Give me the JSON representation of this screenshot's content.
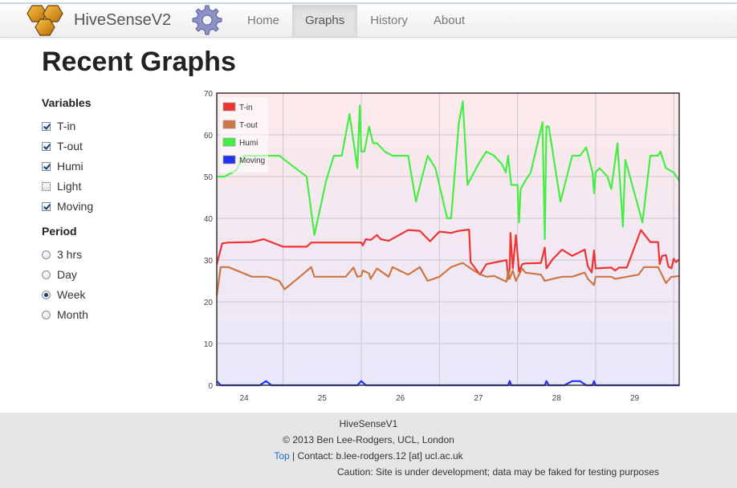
{
  "navbar": {
    "brand": "HiveSenseV2",
    "items": [
      {
        "label": "Home",
        "active": false
      },
      {
        "label": "Graphs",
        "active": true
      },
      {
        "label": "History",
        "active": false
      },
      {
        "label": "About",
        "active": false
      }
    ],
    "logo_icon": "honeycomb-logo-icon",
    "gear_icon": "gear-icon"
  },
  "page_title": "Recent Graphs",
  "sidebar": {
    "variables_header": "Variables",
    "variables": [
      {
        "label": "T-in",
        "checked": true
      },
      {
        "label": "T-out",
        "checked": true
      },
      {
        "label": "Humi",
        "checked": true
      },
      {
        "label": "Light",
        "checked": false
      },
      {
        "label": "Moving",
        "checked": true
      }
    ],
    "period_header": "Period",
    "periods": [
      {
        "label": "3 hrs",
        "selected": false
      },
      {
        "label": "Day",
        "selected": false
      },
      {
        "label": "Week",
        "selected": true
      },
      {
        "label": "Month",
        "selected": false
      }
    ]
  },
  "chart_data": {
    "type": "line",
    "ylim": [
      0,
      70
    ],
    "xlim": [
      23.65,
      29.57
    ],
    "x_ticks": [
      "24",
      "25",
      "26",
      "27",
      "28",
      "29"
    ],
    "y_ticks": [
      "0",
      "10",
      "20",
      "30",
      "40",
      "50",
      "60",
      "70"
    ],
    "grid": true,
    "legend_position": "top-left",
    "series": [
      {
        "name": "T-in",
        "color": "#ee3333",
        "points": [
          [
            23.65,
            29
          ],
          [
            23.72,
            34
          ],
          [
            23.8,
            34.2
          ],
          [
            24.1,
            34.3
          ],
          [
            24.25,
            35
          ],
          [
            24.5,
            33.2
          ],
          [
            24.8,
            33.2
          ],
          [
            24.86,
            34.2
          ],
          [
            25.5,
            34.2
          ],
          [
            25.52,
            33.5
          ],
          [
            25.56,
            35
          ],
          [
            25.62,
            34.8
          ],
          [
            25.7,
            36
          ],
          [
            25.75,
            35
          ],
          [
            25.85,
            34.6
          ],
          [
            26.1,
            37.2
          ],
          [
            26.25,
            37
          ],
          [
            26.38,
            34.5
          ],
          [
            26.5,
            36.8
          ],
          [
            26.65,
            36.5
          ],
          [
            26.75,
            37
          ],
          [
            26.88,
            37.3
          ],
          [
            26.9,
            29.5
          ],
          [
            27.02,
            26.5
          ],
          [
            27.1,
            29
          ],
          [
            27.36,
            30
          ],
          [
            27.38,
            25.5
          ],
          [
            27.4,
            28
          ],
          [
            27.41,
            36.5
          ],
          [
            27.44,
            28
          ],
          [
            27.48,
            36
          ],
          [
            27.52,
            27.2
          ],
          [
            27.56,
            29
          ],
          [
            27.6,
            29.2
          ],
          [
            27.8,
            29.3
          ],
          [
            27.85,
            33
          ],
          [
            27.87,
            28
          ],
          [
            27.95,
            30.2
          ],
          [
            28.07,
            32.5
          ],
          [
            28.2,
            31
          ],
          [
            28.36,
            32.5
          ],
          [
            28.4,
            28.5
          ],
          [
            28.45,
            27
          ],
          [
            28.48,
            32.3
          ],
          [
            28.5,
            28
          ],
          [
            28.7,
            28.2
          ],
          [
            28.75,
            27.5
          ],
          [
            28.8,
            28.2
          ],
          [
            28.9,
            28.2
          ],
          [
            29.08,
            37.2
          ],
          [
            29.2,
            34.3
          ],
          [
            29.3,
            34.3
          ],
          [
            29.32,
            29
          ],
          [
            29.35,
            31
          ],
          [
            29.4,
            31.2
          ],
          [
            29.43,
            28.5
          ],
          [
            29.47,
            28
          ],
          [
            29.5,
            30.3
          ],
          [
            29.53,
            29.5
          ],
          [
            29.57,
            30.2
          ]
        ]
      },
      {
        "name": "T-out",
        "color": "#cc7744",
        "points": [
          [
            23.65,
            21.5
          ],
          [
            23.7,
            28.3
          ],
          [
            23.8,
            28.3
          ],
          [
            24.1,
            26
          ],
          [
            24.3,
            26
          ],
          [
            24.45,
            25
          ],
          [
            24.52,
            23
          ],
          [
            24.7,
            25.8
          ],
          [
            24.86,
            28.3
          ],
          [
            24.9,
            26
          ],
          [
            25.1,
            26
          ],
          [
            25.3,
            26
          ],
          [
            25.4,
            28.2
          ],
          [
            25.45,
            26
          ],
          [
            25.5,
            26.2
          ],
          [
            25.52,
            27.5
          ],
          [
            25.6,
            26.8
          ],
          [
            25.62,
            25.5
          ],
          [
            25.7,
            28
          ],
          [
            25.85,
            26
          ],
          [
            25.9,
            28.3
          ],
          [
            26.1,
            26.5
          ],
          [
            26.25,
            28.3
          ],
          [
            26.35,
            25
          ],
          [
            26.5,
            26
          ],
          [
            26.65,
            28.3
          ],
          [
            26.75,
            29
          ],
          [
            26.8,
            29.3
          ],
          [
            26.9,
            28
          ],
          [
            27.0,
            26.8
          ],
          [
            27.1,
            26
          ],
          [
            27.2,
            26.2
          ],
          [
            27.36,
            24.8
          ],
          [
            27.38,
            27.5
          ],
          [
            27.4,
            25.5
          ],
          [
            27.44,
            27.5
          ],
          [
            27.48,
            25
          ],
          [
            27.56,
            28
          ],
          [
            27.6,
            27
          ],
          [
            27.8,
            26.5
          ],
          [
            27.85,
            25
          ],
          [
            27.95,
            25.5
          ],
          [
            28.07,
            26
          ],
          [
            28.2,
            26
          ],
          [
            28.36,
            27
          ],
          [
            28.4,
            25.5
          ],
          [
            28.48,
            24
          ],
          [
            28.5,
            26
          ],
          [
            28.7,
            26
          ],
          [
            28.75,
            25.5
          ],
          [
            28.9,
            26
          ],
          [
            29.05,
            26.5
          ],
          [
            29.12,
            28.3
          ],
          [
            29.3,
            28.3
          ],
          [
            29.4,
            24.5
          ],
          [
            29.47,
            26
          ],
          [
            29.5,
            26
          ],
          [
            29.57,
            26.2
          ]
        ]
      },
      {
        "name": "Humi",
        "color": "#44ee44",
        "points": [
          [
            23.65,
            50
          ],
          [
            23.75,
            50
          ],
          [
            23.9,
            51.5
          ],
          [
            24.0,
            55
          ],
          [
            24.45,
            55
          ],
          [
            24.8,
            50
          ],
          [
            24.9,
            36
          ],
          [
            25.05,
            49
          ],
          [
            25.15,
            55
          ],
          [
            25.25,
            55
          ],
          [
            25.35,
            65
          ],
          [
            25.45,
            52
          ],
          [
            25.48,
            67
          ],
          [
            25.5,
            56
          ],
          [
            25.54,
            56
          ],
          [
            25.6,
            62
          ],
          [
            25.65,
            58
          ],
          [
            25.7,
            58
          ],
          [
            25.8,
            56
          ],
          [
            25.9,
            55
          ],
          [
            26.1,
            55
          ],
          [
            26.2,
            44
          ],
          [
            26.28,
            50
          ],
          [
            26.35,
            55
          ],
          [
            26.45,
            52
          ],
          [
            26.6,
            40
          ],
          [
            26.65,
            40
          ],
          [
            26.75,
            63
          ],
          [
            26.8,
            68
          ],
          [
            26.86,
            48
          ],
          [
            27.0,
            53
          ],
          [
            27.1,
            56
          ],
          [
            27.2,
            55
          ],
          [
            27.3,
            53
          ],
          [
            27.35,
            51
          ],
          [
            27.38,
            55
          ],
          [
            27.42,
            48
          ],
          [
            27.46,
            48
          ],
          [
            27.5,
            48
          ],
          [
            27.52,
            39
          ],
          [
            27.54,
            47
          ],
          [
            27.6,
            49
          ],
          [
            27.67,
            51
          ],
          [
            27.82,
            63
          ],
          [
            27.85,
            35
          ],
          [
            27.87,
            62
          ],
          [
            27.9,
            62
          ],
          [
            28.05,
            44
          ],
          [
            28.2,
            55
          ],
          [
            28.3,
            55
          ],
          [
            28.38,
            57
          ],
          [
            28.46,
            51
          ],
          [
            28.48,
            46
          ],
          [
            28.5,
            51
          ],
          [
            28.55,
            52
          ],
          [
            28.6,
            51
          ],
          [
            28.65,
            50
          ],
          [
            28.7,
            47
          ],
          [
            28.78,
            58
          ],
          [
            28.85,
            38
          ],
          [
            28.88,
            54
          ],
          [
            29.1,
            39
          ],
          [
            29.2,
            55
          ],
          [
            29.3,
            55
          ],
          [
            29.33,
            56
          ],
          [
            29.4,
            52
          ],
          [
            29.5,
            51
          ],
          [
            29.57,
            49
          ]
        ]
      },
      {
        "name": "Moving",
        "color": "#2233ee",
        "points": [
          [
            23.65,
            1
          ],
          [
            23.7,
            0
          ],
          [
            24.2,
            0
          ],
          [
            24.28,
            1
          ],
          [
            24.35,
            0
          ],
          [
            25.45,
            0
          ],
          [
            25.5,
            1
          ],
          [
            25.56,
            0
          ],
          [
            27.38,
            0
          ],
          [
            27.4,
            1
          ],
          [
            27.42,
            0
          ],
          [
            27.85,
            0
          ],
          [
            27.87,
            1
          ],
          [
            27.9,
            0
          ],
          [
            28.1,
            0
          ],
          [
            28.2,
            1
          ],
          [
            28.3,
            1
          ],
          [
            28.38,
            0
          ],
          [
            28.46,
            0
          ],
          [
            28.48,
            1
          ],
          [
            28.5,
            0
          ],
          [
            29.57,
            0
          ]
        ]
      }
    ]
  },
  "footer": {
    "line1": "HiveSenseV1",
    "line2": "© 2013 Ben Lee-Rodgers, UCL, London",
    "top_link": "Top",
    "contact": " | Contact: b.lee-rodgers.12 [at] ucl.ac.uk",
    "caution": "Caution: Site is under development; data may be faked for testing purposes"
  }
}
